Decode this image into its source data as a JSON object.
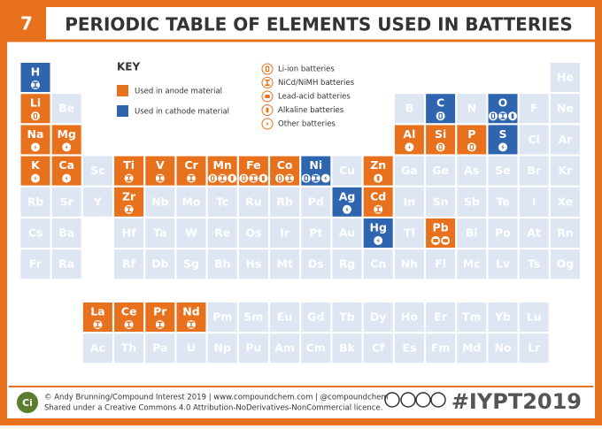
{
  "header": {
    "number": "7",
    "title": "PERIODIC TABLE OF ELEMENTS USED IN BATTERIES"
  },
  "key": {
    "title": "KEY",
    "materials": [
      {
        "label": "Used in anode material",
        "color": "#e8711e"
      },
      {
        "label": "Used in cathode material",
        "color": "#2f65ae"
      }
    ],
    "batteries": [
      "Li-ion batteries",
      "NiCd/NiMH batteries",
      "Lead-acid batteries",
      "Alkaline batteries",
      "Other batteries"
    ]
  },
  "table": {
    "plain_color": "#dde6f2",
    "rows": [
      [
        {
          "symbol": "H",
          "material": 1,
          "icons": [
            1
          ]
        },
        null,
        null,
        null,
        null,
        null,
        null,
        null,
        null,
        null,
        null,
        null,
        null,
        null,
        null,
        null,
        null,
        "He"
      ],
      [
        {
          "symbol": "Li",
          "material": 0,
          "icons": [
            0
          ]
        },
        "Be",
        null,
        null,
        null,
        null,
        null,
        null,
        null,
        null,
        null,
        null,
        "B",
        {
          "symbol": "C",
          "material": 1,
          "icons": [
            0
          ]
        },
        "N",
        {
          "symbol": "O",
          "material": 1,
          "icons": [
            0,
            1,
            3
          ]
        },
        "F",
        "Ne"
      ],
      [
        {
          "symbol": "Na",
          "material": 0,
          "icons": [
            4
          ]
        },
        {
          "symbol": "Mg",
          "material": 0,
          "icons": [
            4
          ]
        },
        null,
        null,
        null,
        null,
        null,
        null,
        null,
        null,
        null,
        null,
        {
          "symbol": "Al",
          "material": 0,
          "icons": [
            4
          ]
        },
        {
          "symbol": "Si",
          "material": 0,
          "icons": [
            0
          ]
        },
        {
          "symbol": "P",
          "material": 0,
          "icons": [
            0
          ]
        },
        {
          "symbol": "S",
          "material": 1,
          "icons": [
            4
          ]
        },
        "Cl",
        "Ar"
      ],
      [
        {
          "symbol": "K",
          "material": 0,
          "icons": [
            4
          ]
        },
        {
          "symbol": "Ca",
          "material": 0,
          "icons": [
            4
          ]
        },
        "Sc",
        {
          "symbol": "Ti",
          "material": 0,
          "icons": [
            1
          ]
        },
        {
          "symbol": "V",
          "material": 0,
          "icons": [
            1
          ]
        },
        {
          "symbol": "Cr",
          "material": 0,
          "icons": [
            1
          ]
        },
        {
          "symbol": "Mn",
          "material": 0,
          "icons": [
            0,
            1,
            3
          ]
        },
        {
          "symbol": "Fe",
          "material": 0,
          "icons": [
            0,
            1,
            3
          ]
        },
        {
          "symbol": "Co",
          "material": 0,
          "icons": [
            0,
            1
          ]
        },
        {
          "symbol": "Ni",
          "material": 1,
          "icons": [
            0,
            1,
            4
          ]
        },
        "Cu",
        {
          "symbol": "Zn",
          "material": 0,
          "icons": [
            3
          ]
        },
        "Ga",
        "Ge",
        "As",
        "Se",
        "Br",
        "Kr"
      ],
      [
        "Rb",
        "Sr",
        "Y",
        {
          "symbol": "Zr",
          "material": 0,
          "icons": [
            1
          ]
        },
        "Nb",
        "Mo",
        "Tc",
        "Ru",
        "Rh",
        "Pd",
        {
          "symbol": "Ag",
          "material": 1,
          "icons": [
            4
          ]
        },
        {
          "symbol": "Cd",
          "material": 0,
          "icons": [
            1
          ]
        },
        "In",
        "Sn",
        "Sb",
        "Te",
        "I",
        "Xe"
      ],
      [
        "Cs",
        "Ba",
        null,
        "Hf",
        "Ta",
        "W",
        "Re",
        "Os",
        "Ir",
        "Pt",
        "Au",
        {
          "symbol": "Hg",
          "material": 1,
          "icons": [
            4
          ]
        },
        "Tl",
        {
          "symbol": "Pb",
          "material": 0,
          "icons": [
            2,
            2
          ]
        },
        "Bi",
        "Po",
        "At",
        "Rn"
      ],
      [
        "Fr",
        "Ra",
        null,
        "Rf",
        "Db",
        "Sg",
        "Bh",
        "Hs",
        "Mt",
        "Ds",
        "Rg",
        "Cn",
        "Nh",
        "Fl",
        "Mc",
        "Lv",
        "Ts",
        "Og"
      ]
    ],
    "f_block": [
      [
        {
          "symbol": "La",
          "material": 0,
          "icons": [
            1
          ]
        },
        {
          "symbol": "Ce",
          "material": 0,
          "icons": [
            1
          ]
        },
        {
          "symbol": "Pr",
          "material": 0,
          "icons": [
            1
          ]
        },
        {
          "symbol": "Nd",
          "material": 0,
          "icons": [
            1
          ]
        },
        "Pm",
        "Sm",
        "Eu",
        "Gd",
        "Tb",
        "Dy",
        "Ho",
        "Er",
        "Tm",
        "Yb",
        "Lu"
      ],
      [
        "Ac",
        "Th",
        "Pa",
        "U",
        "Np",
        "Pu",
        "Am",
        "Cm",
        "Bk",
        "Cf",
        "Es",
        "Fm",
        "Md",
        "No",
        "Lr"
      ]
    ]
  },
  "footer": {
    "logo": "Ci",
    "credit": "© Andy Brunning/Compound Interest 2019 | www.compoundchem.com | @compoundchem",
    "license": "Shared under a Creative Commons 4.0 Attribution-NoDerivatives-NonCommercial licence.",
    "hashtag": "#IYPT2019"
  }
}
